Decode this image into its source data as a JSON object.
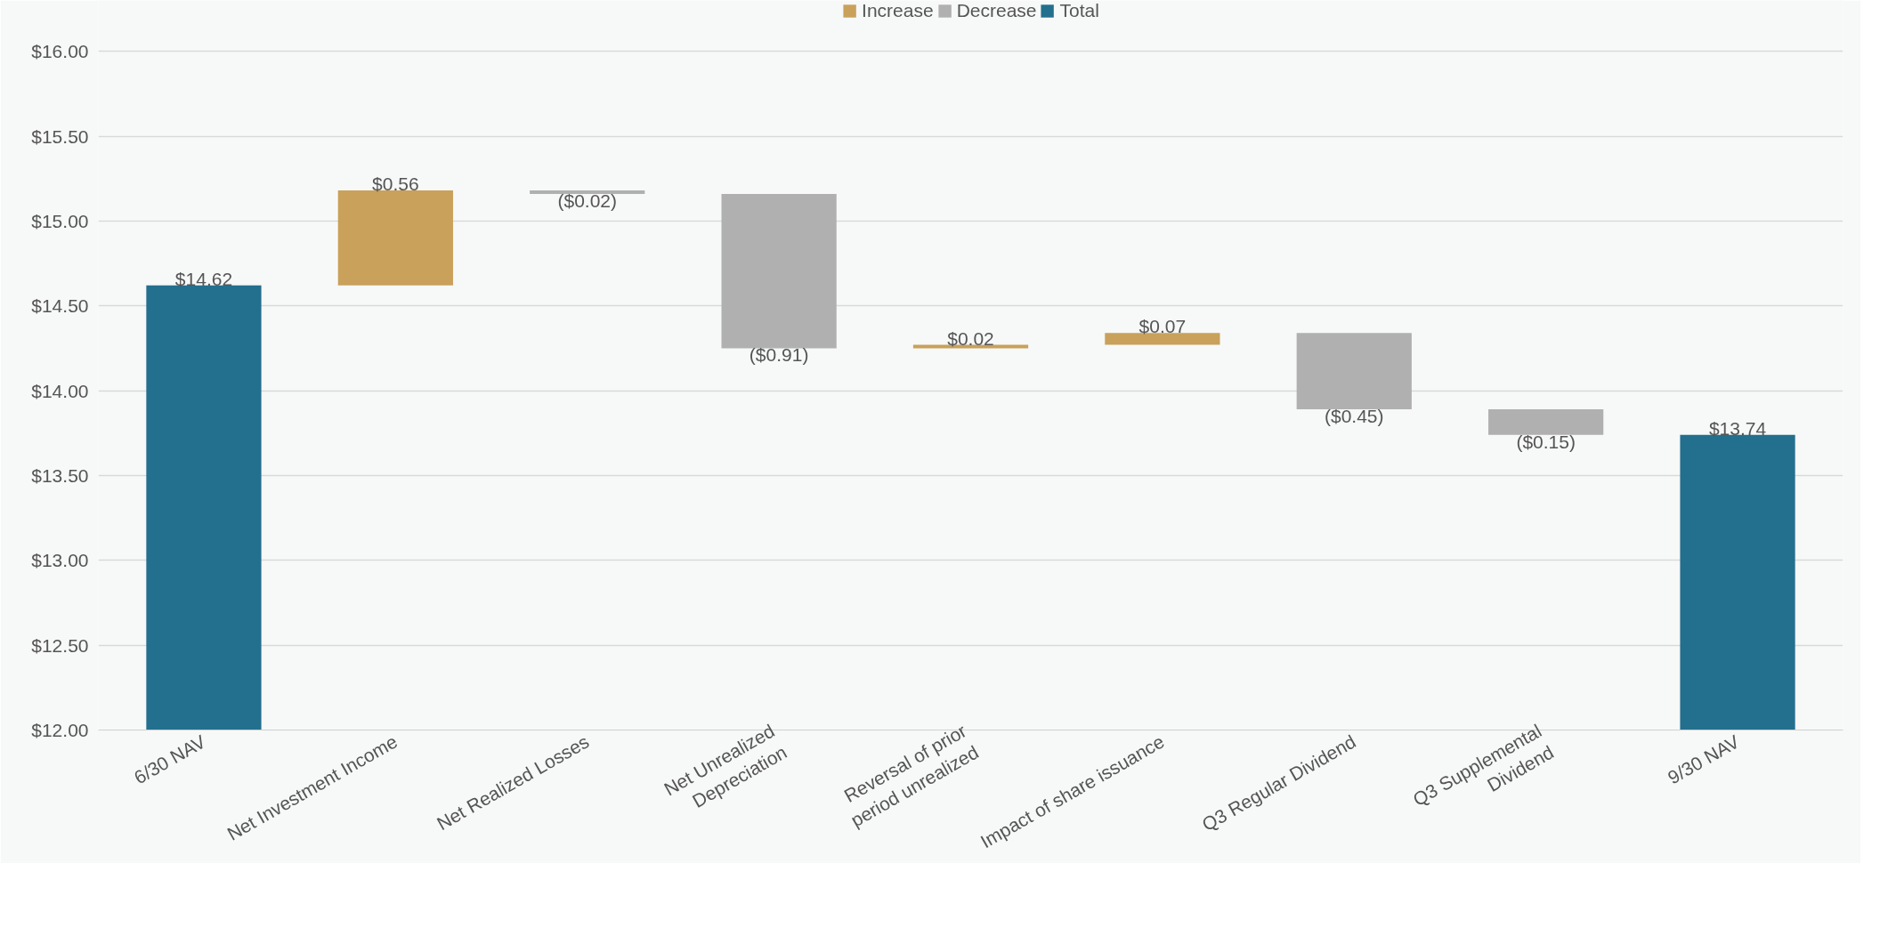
{
  "chart_data": {
    "type": "bar",
    "categories": [
      "6/30 NAV",
      "Net Investment Income",
      "Net Realized Losses",
      "Net Unrealized\nDepreciation",
      "Reversal of prior\nperiod unrealized",
      "Impact of share issuance",
      "Q3 Regular Dividend",
      "Q3 Supplemental\nDividend",
      "9/30 NAV"
    ],
    "series": [
      {
        "name": "Increase",
        "color": "#c9a15a",
        "values": [
          null,
          0.56,
          null,
          null,
          0.02,
          0.07,
          null,
          null,
          null
        ],
        "base": [
          null,
          14.62,
          null,
          null,
          14.25,
          14.27,
          null,
          null,
          null
        ],
        "value_labels": [
          null,
          "$0.56",
          null,
          null,
          "$0.02",
          "$0.07",
          null,
          null,
          null
        ]
      },
      {
        "name": "Decrease",
        "color": "#b0b0b1",
        "values": [
          null,
          null,
          -0.02,
          -0.91,
          null,
          null,
          -0.45,
          -0.15,
          null
        ],
        "base": [
          null,
          null,
          15.18,
          15.16,
          null,
          null,
          14.34,
          13.89,
          null
        ],
        "value_labels": [
          null,
          null,
          "($0.02)",
          "($0.91)",
          null,
          null,
          "($0.45)",
          "($0.15)",
          null
        ]
      },
      {
        "name": "Total",
        "color": "#236f8e",
        "values": [
          14.62,
          null,
          null,
          null,
          null,
          null,
          null,
          null,
          13.74
        ],
        "value_labels": [
          "$14.62",
          null,
          null,
          null,
          null,
          null,
          null,
          null,
          "$13.74"
        ]
      }
    ],
    "ylim": [
      12,
      16.3
    ],
    "yticks": [
      {
        "value": 12,
        "label": "$12.00"
      },
      {
        "value": 12.5,
        "label": "$12.50"
      },
      {
        "value": 13,
        "label": "$13.00"
      },
      {
        "value": 13.5,
        "label": "$13.50"
      },
      {
        "value": 14,
        "label": "$14.00"
      },
      {
        "value": 14.5,
        "label": "$14.50"
      },
      {
        "value": 15,
        "label": "$15.00"
      },
      {
        "value": 15.5,
        "label": "$15.50"
      },
      {
        "value": 16,
        "label": "$16.00"
      }
    ],
    "grid": "y",
    "legend": "top"
  }
}
